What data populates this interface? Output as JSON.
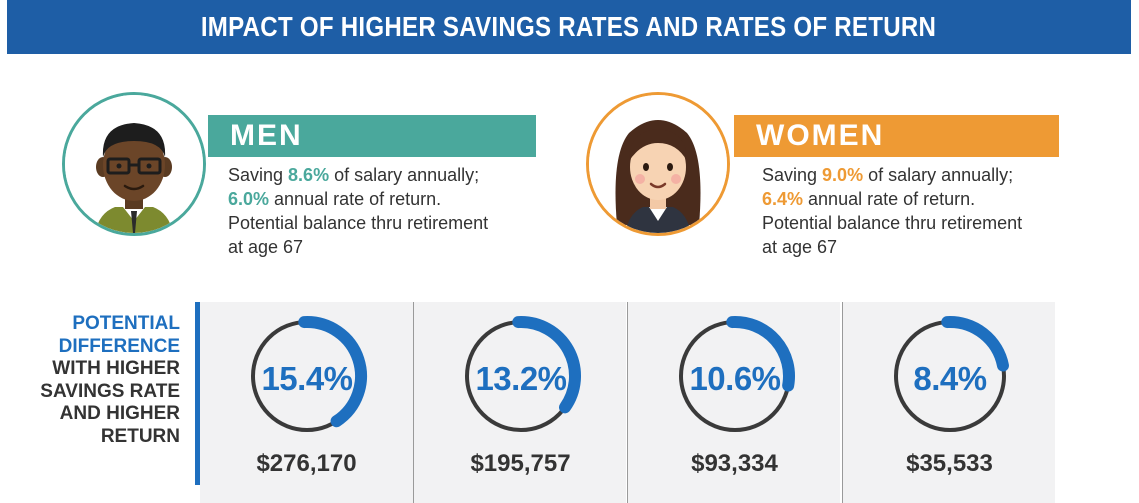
{
  "title": "IMPACT OF HIGHER SAVINGS RATES AND RATES OF RETURN",
  "colors": {
    "banner": "#1e5ea6",
    "men_accent": "#4aa89c",
    "women_accent": "#ee9a34",
    "highlight_blue": "#1e6fbf",
    "gauge_ring": "#3a3a3a",
    "gauge_arc": "#1e6fbf",
    "panel_bg": "#f2f2f3"
  },
  "men": {
    "name": "MEN",
    "line1_prefix": "Saving ",
    "savings_rate": "8.6%",
    "line1_suffix": " of salary annually;",
    "return_rate": "6.0%",
    "line2_suffix": " annual rate of return.",
    "line3": "Potential balance thru retirement",
    "line4": "at age 67",
    "avatar_icon": "man-avatar-icon"
  },
  "women": {
    "name": "WOMEN",
    "line1_prefix": "Saving ",
    "savings_rate": "9.0%",
    "line1_suffix": " of salary annually;",
    "return_rate": "6.4%",
    "line2_suffix": " annual rate of return.",
    "line3": "Potential balance thru retirement",
    "line4": "at age 67",
    "avatar_icon": "woman-avatar-icon"
  },
  "potential_difference": {
    "label_blue_1": "POTENTIAL",
    "label_blue_2": "DIFFERENCE",
    "label_dark_1": "WITH HIGHER",
    "label_dark_2": "SAVINGS RATE",
    "label_dark_3": "AND HIGHER",
    "label_dark_4": "RETURN",
    "items": [
      {
        "percent": "15.4%",
        "amount": "$276,170",
        "arc_fraction": 0.154
      },
      {
        "percent": "13.2%",
        "amount": "$195,757",
        "arc_fraction": 0.132
      },
      {
        "percent": "10.6%",
        "amount": "$93,334",
        "arc_fraction": 0.106
      },
      {
        "percent": "8.4%",
        "amount": "$35,533",
        "arc_fraction": 0.084
      }
    ]
  }
}
